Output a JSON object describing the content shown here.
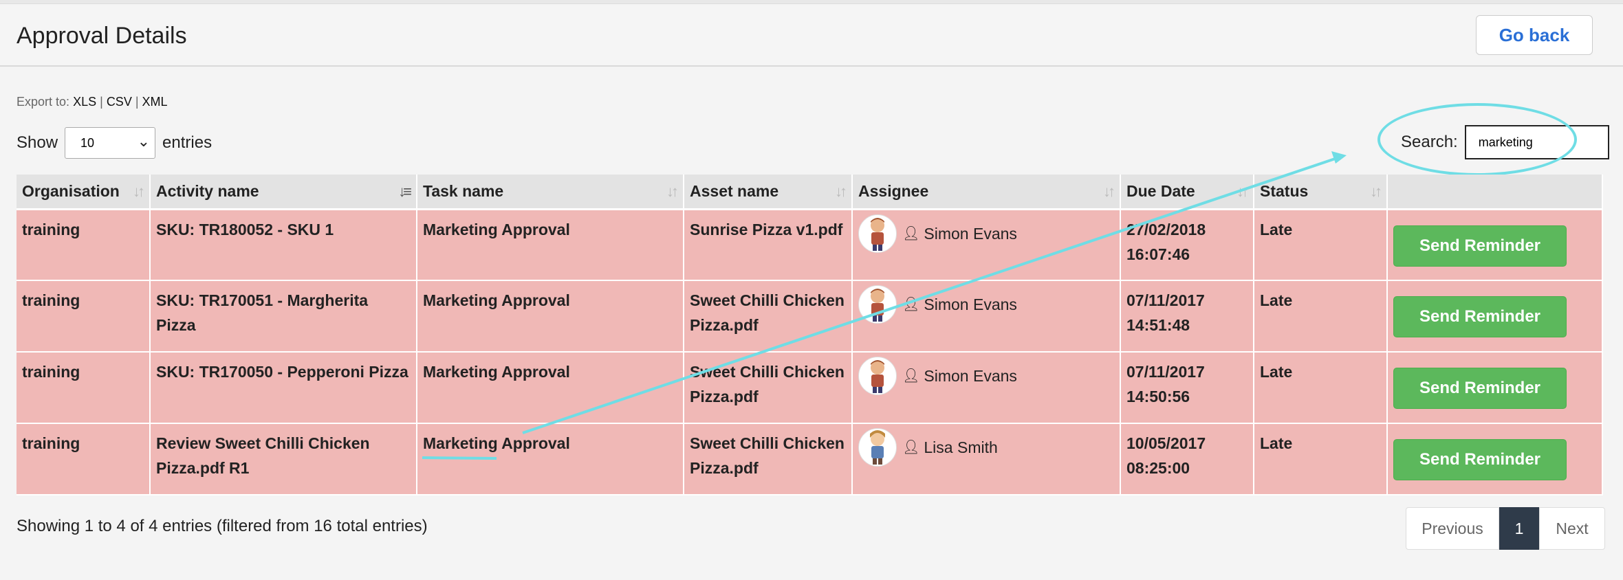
{
  "page": {
    "title": "Approval Details",
    "go_back_label": "Go back"
  },
  "export": {
    "label": "Export to:",
    "formats": [
      "XLS",
      "CSV",
      "XML"
    ]
  },
  "length": {
    "show_label": "Show",
    "value": "10",
    "entries_label": "entries"
  },
  "search": {
    "label": "Search:",
    "value": "marketing"
  },
  "table": {
    "columns": [
      "Organisation",
      "Activity name",
      "Task name",
      "Asset name",
      "Assignee",
      "Due Date",
      "Status",
      ""
    ],
    "rows": [
      {
        "organisation": "training",
        "activity": "SKU: TR180052 - SKU 1",
        "task": "Marketing Approval",
        "asset": "Sunrise Pizza v1.pdf",
        "assignee": "Simon Evans",
        "due": "27/02/2018 16:07:46",
        "status": "Late",
        "action": "Send Reminder"
      },
      {
        "organisation": "training",
        "activity": "SKU: TR170051 - Margherita Pizza",
        "task": "Marketing Approval",
        "asset": "Sweet Chilli Chicken Pizza.pdf",
        "assignee": "Simon Evans",
        "due": "07/11/2017 14:51:48",
        "status": "Late",
        "action": "Send Reminder"
      },
      {
        "organisation": "training",
        "activity": "SKU: TR170050 - Pepperoni Pizza",
        "task": "Marketing Approval",
        "asset": "Sweet Chilli Chicken Pizza.pdf",
        "assignee": "Simon Evans",
        "due": "07/11/2017 14:50:56",
        "status": "Late",
        "action": "Send Reminder"
      },
      {
        "organisation": "training",
        "activity": "Review Sweet Chilli Chicken Pizza.pdf R1",
        "task": "Marketing Approval",
        "asset": "Sweet Chilli Chicken Pizza.pdf",
        "assignee": "Lisa Smith",
        "due": "10/05/2017 08:25:00",
        "status": "Late",
        "action": "Send Reminder"
      }
    ]
  },
  "info": "Showing 1 to 4 of 4 entries (filtered from 16 total entries)",
  "pagination": {
    "previous": "Previous",
    "current": "1",
    "next": "Next"
  },
  "colors": {
    "row_late": "#f0b8b6",
    "button_green": "#5cb85c",
    "link_blue": "#2a6fd6",
    "annotation": "#6fdde5",
    "pager_active": "#2f3b4a"
  }
}
